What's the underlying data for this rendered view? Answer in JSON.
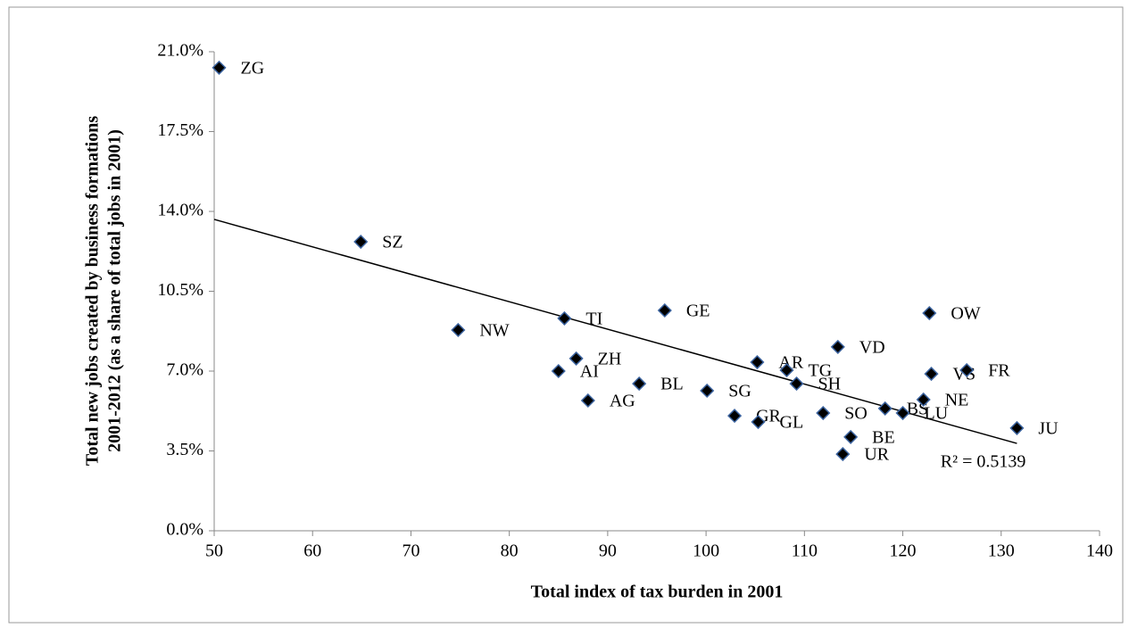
{
  "chart_data": {
    "type": "scatter",
    "x_label": "Total index of tax burden in 2001",
    "y_label": [
      "Total new jobs created by business formations",
      "2001-2012 (as a share of total jobs in 2001)"
    ],
    "labels": [
      "ZG",
      "SZ",
      "NW",
      "TI",
      "GE",
      "AI",
      "ZH",
      "AG",
      "BL",
      "SG",
      "GR",
      "GL",
      "AR",
      "TG",
      "SH",
      "VD",
      "SO",
      "BE",
      "UR",
      "BS",
      "LU",
      "NE",
      "OW",
      "VS",
      "FR",
      "JU"
    ],
    "x": [
      50.5,
      64.9,
      74.8,
      85.6,
      95.8,
      85.0,
      86.8,
      88.0,
      93.2,
      100.1,
      102.9,
      105.3,
      105.2,
      108.2,
      109.2,
      113.4,
      111.9,
      114.7,
      113.9,
      118.2,
      120.0,
      122.1,
      122.7,
      122.9,
      126.5,
      131.6
    ],
    "values": [
      20.3,
      12.67,
      8.8,
      9.31,
      9.66,
      7.0,
      7.55,
      5.71,
      6.45,
      6.14,
      5.04,
      4.77,
      7.39,
      7.04,
      6.45,
      8.06,
      5.16,
      4.11,
      3.36,
      5.36,
      5.16,
      5.75,
      9.54,
      6.88,
      7.04,
      4.5
    ],
    "color": "#000000",
    "edge_color": "#3c64a0",
    "trendline": {
      "x": [
        50,
        131.6
      ],
      "values": [
        13.65,
        3.83
      ],
      "label": "R² = 0.5139"
    },
    "xlim": [
      50,
      140
    ],
    "xticks": [
      50,
      60,
      70,
      80,
      90,
      100,
      110,
      120,
      130,
      140
    ],
    "ylim": [
      0,
      21
    ],
    "yticks": [
      {
        "value": 0,
        "label": "0.0%"
      },
      {
        "value": 3.5,
        "label": "3.5%"
      },
      {
        "value": 7,
        "label": "7.0%"
      },
      {
        "value": 10.5,
        "label": "10.5%"
      },
      {
        "value": 14,
        "label": "14.0%"
      },
      {
        "value": 17.5,
        "label": "17.5%"
      },
      {
        "value": 21,
        "label": "21.0%"
      }
    ],
    "grid": false
  }
}
